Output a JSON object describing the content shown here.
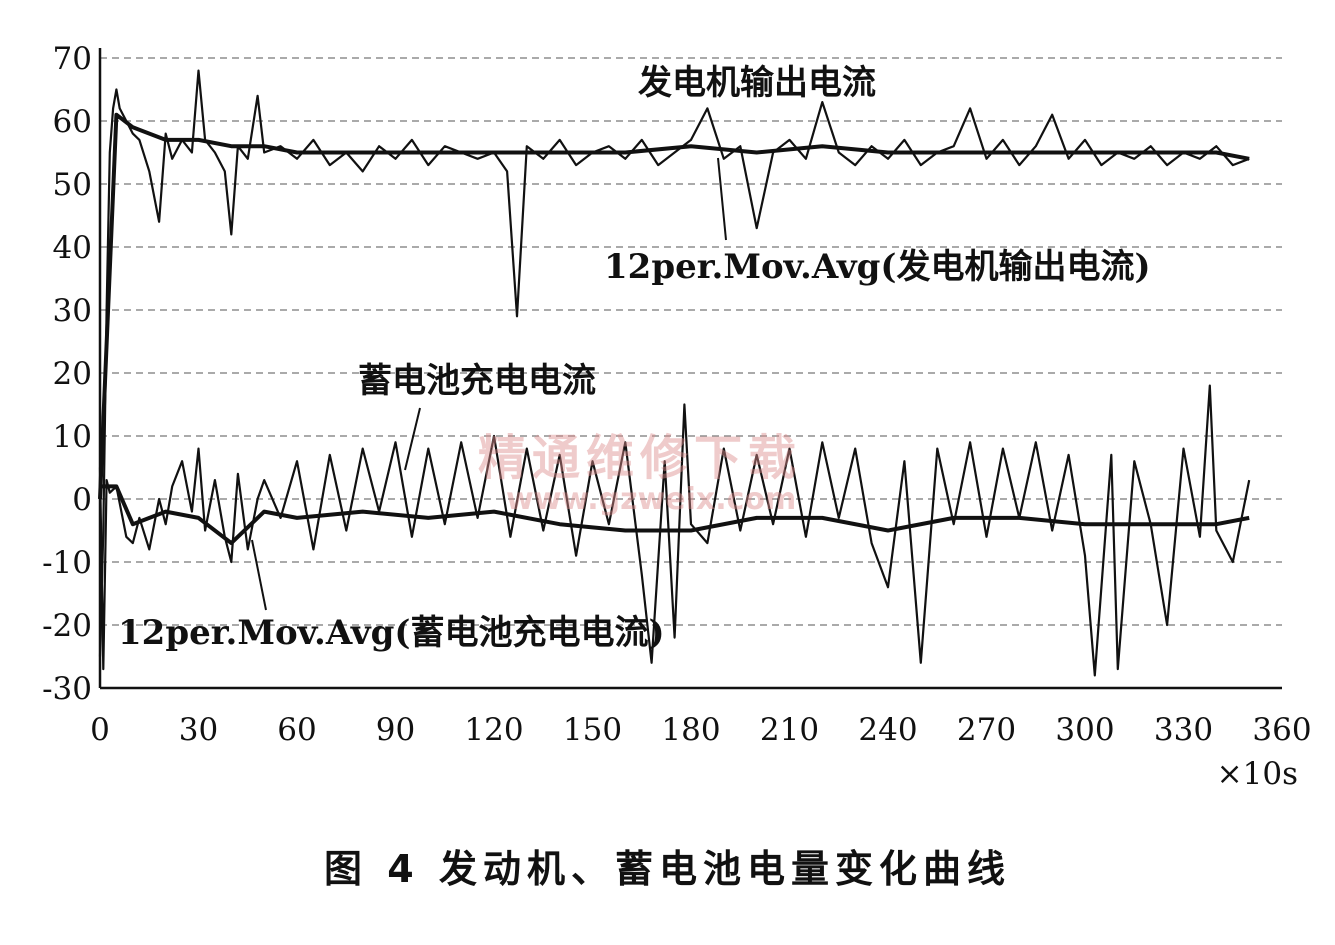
{
  "chart_data": {
    "type": "line",
    "title": "",
    "xlabel": "",
    "ylabel": "",
    "x_unit": "×10s",
    "xlim": [
      0,
      360
    ],
    "ylim": [
      -30,
      70
    ],
    "x_ticks": [
      0,
      30,
      60,
      90,
      120,
      150,
      180,
      210,
      240,
      270,
      300,
      330,
      360
    ],
    "y_ticks": [
      70,
      60,
      50,
      40,
      30,
      20,
      10,
      0,
      -10,
      -20,
      -30
    ],
    "grid": "horizontal-dashed",
    "series": [
      {
        "name": "发电机输出电流",
        "role": "raw",
        "color": "#111111",
        "x": [
          0,
          1,
          2,
          3,
          4,
          5,
          6,
          8,
          10,
          12,
          15,
          18,
          20,
          22,
          25,
          28,
          30,
          32,
          35,
          38,
          40,
          42,
          45,
          48,
          50,
          55,
          60,
          65,
          70,
          75,
          80,
          85,
          90,
          95,
          100,
          105,
          110,
          115,
          120,
          124,
          127,
          130,
          135,
          140,
          145,
          150,
          155,
          160,
          165,
          170,
          175,
          180,
          185,
          190,
          195,
          200,
          205,
          210,
          215,
          220,
          225,
          230,
          235,
          240,
          245,
          250,
          255,
          260,
          265,
          270,
          275,
          280,
          285,
          290,
          295,
          300,
          305,
          310,
          315,
          320,
          325,
          330,
          335,
          340,
          345,
          350
        ],
        "values": [
          -25,
          -5,
          30,
          55,
          62,
          65,
          62,
          60,
          58,
          57,
          52,
          44,
          58,
          54,
          57,
          55,
          68,
          57,
          55,
          52,
          42,
          56,
          54,
          64,
          55,
          56,
          54,
          57,
          53,
          55,
          52,
          56,
          54,
          57,
          53,
          56,
          55,
          54,
          55,
          52,
          29,
          56,
          54,
          57,
          53,
          55,
          56,
          54,
          57,
          53,
          55,
          57,
          62,
          54,
          56,
          43,
          55,
          57,
          54,
          63,
          55,
          53,
          56,
          54,
          57,
          53,
          55,
          56,
          62,
          54,
          57,
          53,
          56,
          61,
          54,
          57,
          53,
          55,
          54,
          56,
          53,
          55,
          54,
          56,
          53,
          54
        ]
      },
      {
        "name": "12per.Mov.Avg(发电机输出电流)",
        "role": "moving-average",
        "color": "#111111",
        "x": [
          0,
          5,
          10,
          20,
          30,
          40,
          50,
          60,
          80,
          100,
          120,
          140,
          160,
          180,
          200,
          220,
          240,
          260,
          280,
          300,
          320,
          340,
          350
        ],
        "values": [
          0,
          61,
          59,
          57,
          57,
          56,
          56,
          55,
          55,
          55,
          55,
          55,
          55,
          56,
          55,
          56,
          55,
          55,
          55,
          55,
          55,
          55,
          54
        ]
      },
      {
        "name": "蓄电池充电电流",
        "role": "raw",
        "color": "#111111",
        "x": [
          0,
          1,
          2,
          3,
          5,
          8,
          10,
          12,
          15,
          18,
          20,
          22,
          25,
          28,
          30,
          32,
          35,
          38,
          40,
          42,
          45,
          48,
          50,
          55,
          60,
          65,
          70,
          75,
          80,
          85,
          90,
          95,
          100,
          105,
          110,
          115,
          120,
          125,
          130,
          135,
          140,
          145,
          150,
          155,
          160,
          165,
          168,
          172,
          175,
          178,
          180,
          185,
          190,
          195,
          200,
          205,
          210,
          215,
          220,
          225,
          230,
          235,
          240,
          245,
          250,
          255,
          260,
          265,
          270,
          275,
          280,
          285,
          290,
          295,
          300,
          303,
          308,
          310,
          315,
          320,
          325,
          330,
          335,
          338,
          340,
          345,
          350
        ],
        "values": [
          5,
          -27,
          3,
          1,
          2,
          -6,
          -7,
          -3,
          -8,
          0,
          -4,
          2,
          6,
          -2,
          8,
          -5,
          3,
          -6,
          -10,
          4,
          -8,
          0,
          3,
          -3,
          6,
          -8,
          7,
          -5,
          8,
          -2,
          9,
          -6,
          8,
          -4,
          9,
          -3,
          10,
          -6,
          8,
          -5,
          7,
          -9,
          6,
          -4,
          9,
          -12,
          -26,
          6,
          -22,
          15,
          -4,
          -7,
          8,
          -5,
          7,
          -4,
          8,
          -6,
          9,
          -3,
          8,
          -7,
          -14,
          6,
          -26,
          8,
          -4,
          9,
          -6,
          8,
          -3,
          9,
          -5,
          7,
          -9,
          -28,
          7,
          -27,
          6,
          -4,
          -20,
          8,
          -6,
          18,
          -5,
          -10,
          3
        ]
      },
      {
        "name": "12per.Mov.Avg(蓄电池充电电流)",
        "role": "moving-average",
        "color": "#111111",
        "x": [
          0,
          5,
          10,
          20,
          30,
          40,
          50,
          60,
          80,
          100,
          120,
          140,
          160,
          180,
          200,
          220,
          240,
          260,
          280,
          300,
          320,
          340,
          350
        ],
        "values": [
          2,
          2,
          -4,
          -2,
          -3,
          -7,
          -2,
          -3,
          -2,
          -3,
          -2,
          -4,
          -5,
          -5,
          -3,
          -3,
          -5,
          -3,
          -3,
          -4,
          -4,
          -4,
          -3
        ]
      }
    ],
    "annotations": [
      {
        "id": "gen",
        "text": "发电机输出电流"
      },
      {
        "id": "gen_avg",
        "text": "12per.Mov.Avg(发电机输出电流)"
      },
      {
        "id": "bat",
        "text": "蓄电池充电电流"
      },
      {
        "id": "bat_avg",
        "text": "12per.Mov.Avg(蓄电池充电电流)"
      }
    ]
  },
  "caption": "图 4 发动机、蓄电池电量变化曲线",
  "watermark": {
    "line1": "精通维修下载",
    "line2": "www.gzweix.com",
    "color": "#dc8c8c"
  }
}
